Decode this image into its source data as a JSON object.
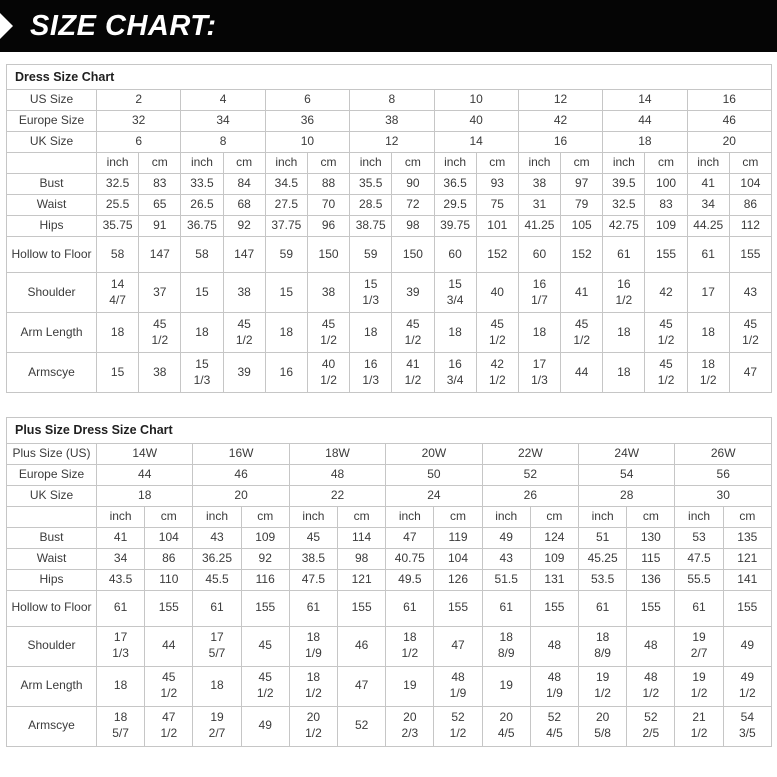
{
  "banner": {
    "title": "SIZE CHART:",
    "bg_color": "#050505",
    "fg_color": "#ffffff"
  },
  "tables": [
    {
      "title": "Dress Size Chart",
      "units": [
        "inch",
        "cm"
      ],
      "size_rows": [
        {
          "label": "US Size",
          "values": [
            "2",
            "4",
            "6",
            "8",
            "10",
            "12",
            "14",
            "16"
          ]
        },
        {
          "label": "Europe Size",
          "values": [
            "32",
            "34",
            "36",
            "38",
            "40",
            "42",
            "44",
            "46"
          ]
        },
        {
          "label": "UK Size",
          "values": [
            "6",
            "8",
            "10",
            "12",
            "14",
            "16",
            "18",
            "20"
          ]
        }
      ],
      "measure_rows": [
        {
          "label": "Bust",
          "values": [
            "32.5",
            "83",
            "33.5",
            "84",
            "34.5",
            "88",
            "35.5",
            "90",
            "36.5",
            "93",
            "38",
            "97",
            "39.5",
            "100",
            "41",
            "104"
          ]
        },
        {
          "label": "Waist",
          "values": [
            "25.5",
            "65",
            "26.5",
            "68",
            "27.5",
            "70",
            "28.5",
            "72",
            "29.5",
            "75",
            "31",
            "79",
            "32.5",
            "83",
            "34",
            "86"
          ]
        },
        {
          "label": "Hips",
          "values": [
            "35.75",
            "91",
            "36.75",
            "92",
            "37.75",
            "96",
            "38.75",
            "98",
            "39.75",
            "101",
            "41.25",
            "105",
            "42.75",
            "109",
            "44.25",
            "112"
          ]
        },
        {
          "label": "Hollow to Floor",
          "values": [
            "58",
            "147",
            "58",
            "147",
            "59",
            "150",
            "59",
            "150",
            "60",
            "152",
            "60",
            "152",
            "61",
            "155",
            "61",
            "155"
          ]
        },
        {
          "label": "Shoulder",
          "values": [
            "14 4/7",
            "37",
            "15",
            "38",
            "15",
            "38",
            "15 1/3",
            "39",
            "15 3/4",
            "40",
            "16 1/7",
            "41",
            "16 1/2",
            "42",
            "17",
            "43"
          ]
        },
        {
          "label": "Arm Length",
          "values": [
            "18",
            "45 1/2",
            "18",
            "45 1/2",
            "18",
            "45 1/2",
            "18",
            "45 1/2",
            "18",
            "45 1/2",
            "18",
            "45 1/2",
            "18",
            "45 1/2",
            "18",
            "45 1/2"
          ]
        },
        {
          "label": "Armscye",
          "values": [
            "15",
            "38",
            "15 1/3",
            "39",
            "16",
            "40 1/2",
            "16 1/3",
            "41 1/2",
            "16 3/4",
            "42 1/2",
            "17 1/3",
            "44",
            "18",
            "45 1/2",
            "18 1/2",
            "47"
          ]
        }
      ]
    },
    {
      "title": "Plus Size Dress Size Chart",
      "units": [
        "inch",
        "cm"
      ],
      "size_rows": [
        {
          "label": "Plus Size (US)",
          "values": [
            "14W",
            "16W",
            "18W",
            "20W",
            "22W",
            "24W",
            "26W"
          ]
        },
        {
          "label": "Europe Size",
          "values": [
            "44",
            "46",
            "48",
            "50",
            "52",
            "54",
            "56"
          ]
        },
        {
          "label": "UK Size",
          "values": [
            "18",
            "20",
            "22",
            "24",
            "26",
            "28",
            "30"
          ]
        }
      ],
      "measure_rows": [
        {
          "label": "Bust",
          "values": [
            "41",
            "104",
            "43",
            "109",
            "45",
            "114",
            "47",
            "119",
            "49",
            "124",
            "51",
            "130",
            "53",
            "135"
          ]
        },
        {
          "label": "Waist",
          "values": [
            "34",
            "86",
            "36.25",
            "92",
            "38.5",
            "98",
            "40.75",
            "104",
            "43",
            "109",
            "45.25",
            "115",
            "47.5",
            "121"
          ]
        },
        {
          "label": "Hips",
          "values": [
            "43.5",
            "110",
            "45.5",
            "116",
            "47.5",
            "121",
            "49.5",
            "126",
            "51.5",
            "131",
            "53.5",
            "136",
            "55.5",
            "141"
          ]
        },
        {
          "label": "Hollow to Floor",
          "values": [
            "61",
            "155",
            "61",
            "155",
            "61",
            "155",
            "61",
            "155",
            "61",
            "155",
            "61",
            "155",
            "61",
            "155"
          ]
        },
        {
          "label": "Shoulder",
          "values": [
            "17 1/3",
            "44",
            "17 5/7",
            "45",
            "18 1/9",
            "46",
            "18 1/2",
            "47",
            "18 8/9",
            "48",
            "18 8/9",
            "48",
            "19 2/7",
            "49"
          ]
        },
        {
          "label": "Arm Length",
          "values": [
            "18",
            "45 1/2",
            "18",
            "45 1/2",
            "18 1/2",
            "47",
            "19",
            "48 1/9",
            "19",
            "48 1/9",
            "19 1/2",
            "48 1/2",
            "19 1/2",
            "49 1/2"
          ]
        },
        {
          "label": "Armscye",
          "values": [
            "18 5/7",
            "47 1/2",
            "19 2/7",
            "49",
            "20 1/2",
            "52",
            "20 2/3",
            "52 1/2",
            "20 4/5",
            "52 4/5",
            "20 5/8",
            "52 2/5",
            "21 1/2",
            "54 3/5"
          ]
        }
      ]
    }
  ]
}
